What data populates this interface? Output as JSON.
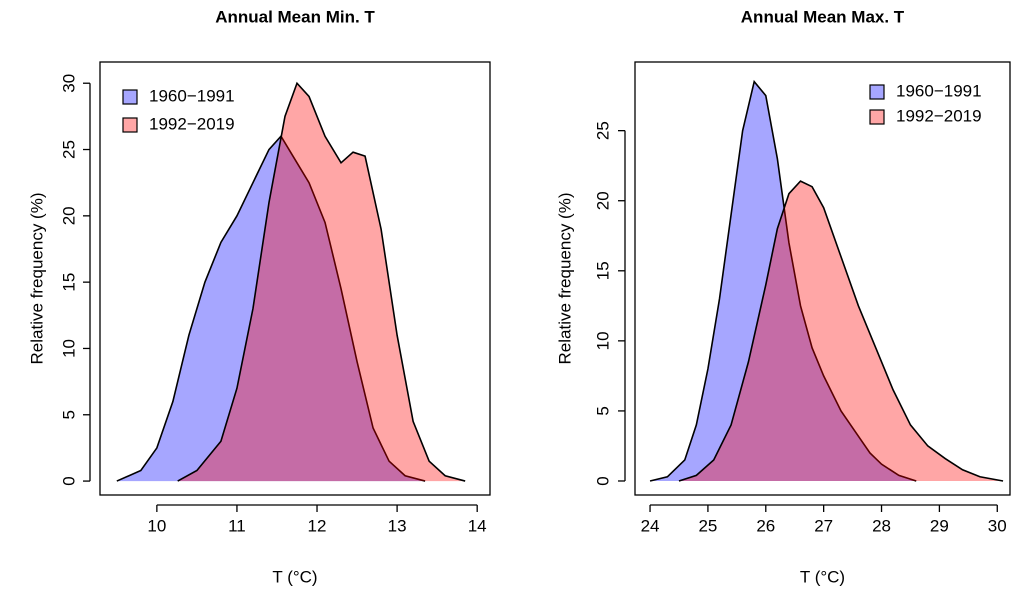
{
  "chart_data": [
    {
      "type": "area",
      "title": "Annual Mean Min. T",
      "xlabel": "T (°C)",
      "ylabel": "Relative frequency (%)",
      "xlim": [
        9.29,
        14.16
      ],
      "ylim": [
        -1.05,
        31.6
      ],
      "xticks": [
        10,
        11,
        12,
        13,
        14
      ],
      "yticks": [
        0,
        5,
        10,
        15,
        20,
        25,
        30
      ],
      "legend": "top-left",
      "series": [
        {
          "name": "1960−1991",
          "color": "#0000ff",
          "x": [
            9.5,
            9.8,
            10,
            10.2,
            10.4,
            10.6,
            10.8,
            11,
            11.2,
            11.4,
            11.55,
            11.7,
            11.9,
            12.1,
            12.3,
            12.5,
            12.7,
            12.9,
            13.1,
            13.35
          ],
          "values": [
            0,
            0.8,
            2.5,
            6,
            11,
            15,
            18,
            20,
            22.5,
            25,
            26,
            24.5,
            22.5,
            19.5,
            14.5,
            9,
            4,
            1.5,
            0.4,
            0
          ]
        },
        {
          "name": "1992−2019",
          "color": "#ff0000",
          "x": [
            10.26,
            10.5,
            10.8,
            11,
            11.2,
            11.4,
            11.6,
            11.75,
            11.9,
            12.1,
            12.3,
            12.45,
            12.6,
            12.8,
            13,
            13.2,
            13.4,
            13.6,
            13.85
          ],
          "values": [
            0,
            0.8,
            3,
            7,
            13,
            21,
            27.5,
            30,
            29,
            26,
            24,
            24.8,
            24.5,
            19,
            11,
            4.5,
            1.5,
            0.4,
            0
          ]
        }
      ]
    },
    {
      "type": "area",
      "title": "Annual Mean Max. T",
      "xlabel": "T (°C)",
      "ylabel": "Relative frequency (%)",
      "xlim": [
        23.74,
        30.22
      ],
      "ylim": [
        -1,
        29.9
      ],
      "xticks": [
        24,
        25,
        26,
        27,
        28,
        29,
        30
      ],
      "yticks": [
        0,
        5,
        10,
        15,
        20,
        25
      ],
      "legend": "top-right",
      "series": [
        {
          "name": "1960−1991",
          "color": "#0000ff",
          "x": [
            24,
            24.3,
            24.6,
            24.8,
            25,
            25.2,
            25.4,
            25.6,
            25.8,
            26,
            26.2,
            26.4,
            26.6,
            26.8,
            27,
            27.3,
            27.6,
            27.8,
            28,
            28.3,
            28.6
          ],
          "values": [
            0,
            0.3,
            1.5,
            4,
            8,
            13,
            19,
            25,
            28.5,
            27.5,
            23,
            17,
            12.5,
            9.5,
            7.5,
            5,
            3.2,
            2,
            1.2,
            0.4,
            0
          ]
        },
        {
          "name": "1992−2019",
          "color": "#ff0000",
          "x": [
            24.5,
            24.8,
            25.1,
            25.4,
            25.7,
            26,
            26.2,
            26.4,
            26.6,
            26.8,
            27,
            27.3,
            27.6,
            27.9,
            28.2,
            28.5,
            28.8,
            29.1,
            29.4,
            29.7,
            30.1
          ],
          "values": [
            0,
            0.4,
            1.5,
            4,
            8.5,
            14,
            18,
            20.5,
            21.4,
            21,
            19.5,
            16,
            12.5,
            9.5,
            6.5,
            4,
            2.5,
            1.6,
            0.8,
            0.3,
            0
          ]
        }
      ]
    }
  ]
}
